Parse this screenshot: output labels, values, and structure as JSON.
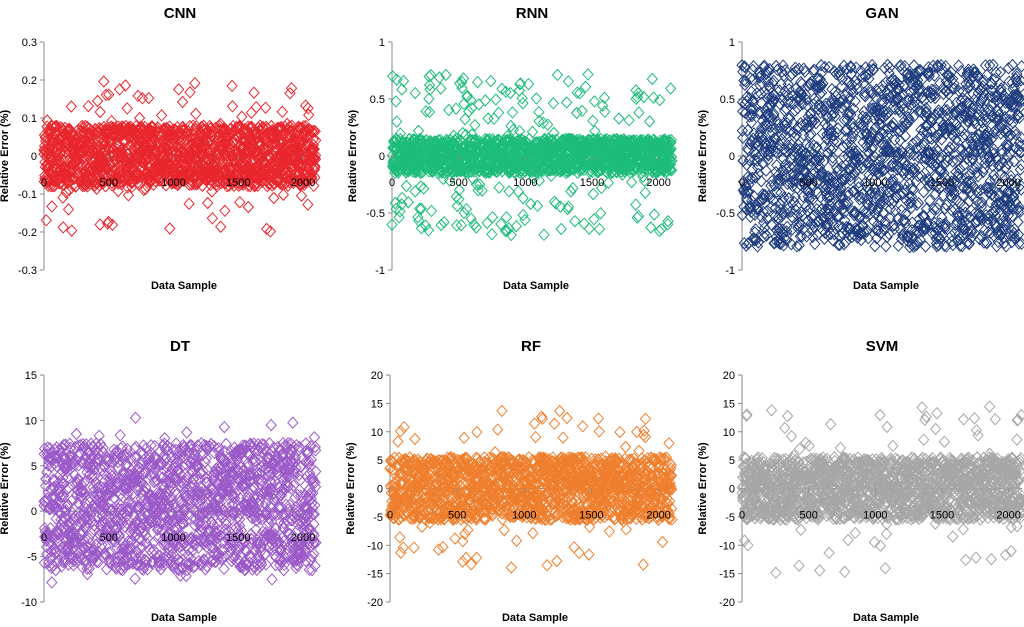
{
  "figure": {
    "description_free": true
  },
  "chart_data": [
    {
      "id": "cnn",
      "type": "scatter",
      "title": "CNN",
      "xlabel": "Data Sample",
      "ylabel": "Relative Error (%)",
      "xlim": [
        0,
        2100
      ],
      "ylim": [
        -0.3,
        0.3
      ],
      "xticks": [
        "0",
        "500",
        "1000",
        "1500",
        "2000"
      ],
      "xtick_values": [
        0,
        500,
        1000,
        1500,
        2000
      ],
      "yticks": [
        "-0.3",
        "-0.2",
        "-0.1",
        "0",
        "0.1",
        "0.2",
        "0.3"
      ],
      "ytick_values": [
        -0.3,
        -0.2,
        -0.1,
        0,
        0.1,
        0.2,
        0.3
      ],
      "marker": "diamond-open",
      "color": "#e8262d",
      "n_points": 2100,
      "seed": 11,
      "core_spread": 0.08,
      "outlier_fraction": 0.06,
      "outlier_range": [
        -0.2,
        0.2
      ]
    },
    {
      "id": "rnn",
      "type": "scatter",
      "title": "RNN",
      "xlabel": "Data Sample",
      "ylabel": "Relative Error (%)",
      "xlim": [
        0,
        2100
      ],
      "ylim": [
        -1,
        1
      ],
      "xticks": [
        "0",
        "500",
        "1000",
        "1500",
        "2000"
      ],
      "xtick_values": [
        0,
        500,
        1000,
        1500,
        2000
      ],
      "yticks": [
        "-1",
        "-0.5",
        "0",
        "0.5",
        "1"
      ],
      "ytick_values": [
        -1,
        -0.5,
        0,
        0.5,
        1
      ],
      "marker": "diamond-open",
      "color": "#1dbc7a",
      "n_points": 2100,
      "seed": 23,
      "core_spread": 0.15,
      "outlier_fraction": 0.14,
      "outlier_range": [
        -0.7,
        0.72
      ]
    },
    {
      "id": "gan",
      "type": "scatter",
      "title": "GAN",
      "xlabel": "Data Sample",
      "ylabel": "Relative Error (%)",
      "xlim": [
        0,
        2100
      ],
      "ylim": [
        -1,
        1
      ],
      "xticks": [
        "0",
        "500",
        "1000",
        "1500",
        "2000"
      ],
      "xtick_values": [
        0,
        500,
        1000,
        1500,
        2000
      ],
      "yticks": [
        "-1",
        "-0.5",
        "0",
        "0.5",
        "1"
      ],
      "ytick_values": [
        -1,
        -0.5,
        0,
        0.5,
        1
      ],
      "marker": "diamond-open",
      "color": "#1f3d7f",
      "n_points": 2100,
      "seed": 37,
      "core_spread": 0.8,
      "outlier_fraction": 0.0,
      "outlier_range": [
        -0.82,
        0.82
      ]
    },
    {
      "id": "dt",
      "type": "scatter",
      "title": "DT",
      "xlabel": "Data Sample",
      "ylabel": "Relative Error (%)",
      "xlim": [
        0,
        2100
      ],
      "ylim": [
        -10,
        15
      ],
      "xticks": [
        "0",
        "500",
        "1000",
        "1500",
        "2000"
      ],
      "xtick_values": [
        0,
        500,
        1000,
        1500,
        2000
      ],
      "yticks": [
        "-10",
        "-5",
        "0",
        "5",
        "10",
        "15"
      ],
      "ytick_values": [
        -10,
        -5,
        0,
        5,
        10,
        15
      ],
      "marker": "diamond-open",
      "color": "#9b59c8",
      "n_points": 2100,
      "seed": 41,
      "core_spread": 7.0,
      "core_center": 0.5,
      "outlier_fraction": 0.03,
      "outlier_range": [
        -8,
        10.5
      ]
    },
    {
      "id": "rf",
      "type": "scatter",
      "title": "RF",
      "xlabel": "Data Sample",
      "ylabel": "Relative Error (%)",
      "xlim": [
        0,
        2100
      ],
      "ylim": [
        -20,
        20
      ],
      "xticks": [
        "0",
        "500",
        "1000",
        "1500",
        "2000"
      ],
      "xtick_values": [
        0,
        500,
        1000,
        1500,
        2000
      ],
      "yticks": [
        "-20",
        "-15",
        "-10",
        "-5",
        "0",
        "5",
        "10",
        "15",
        "20"
      ],
      "ytick_values": [
        -20,
        -15,
        -10,
        -5,
        0,
        5,
        10,
        15,
        20
      ],
      "marker": "diamond-open",
      "color": "#ee7f2d",
      "n_points": 2100,
      "seed": 53,
      "core_spread": 5.5,
      "outlier_fraction": 0.06,
      "outlier_range": [
        -14,
        14
      ]
    },
    {
      "id": "svm",
      "type": "scatter",
      "title": "SVM",
      "xlabel": "Data Sample",
      "ylabel": "Relative Error (%)",
      "xlim": [
        0,
        2100
      ],
      "ylim": [
        -20,
        20
      ],
      "xticks": [
        "0",
        "500",
        "1000",
        "1500",
        "2000"
      ],
      "xtick_values": [
        0,
        500,
        1000,
        1500,
        2000
      ],
      "yticks": [
        "-20",
        "-15",
        "-10",
        "-5",
        "0",
        "5",
        "10",
        "15",
        "20"
      ],
      "ytick_values": [
        -20,
        -15,
        -10,
        -5,
        0,
        5,
        10,
        15,
        20
      ],
      "marker": "diamond-open",
      "color": "#a6a6a6",
      "n_points": 2100,
      "seed": 67,
      "core_spread": 5.5,
      "outlier_fraction": 0.05,
      "outlier_range": [
        -15,
        15
      ]
    }
  ]
}
